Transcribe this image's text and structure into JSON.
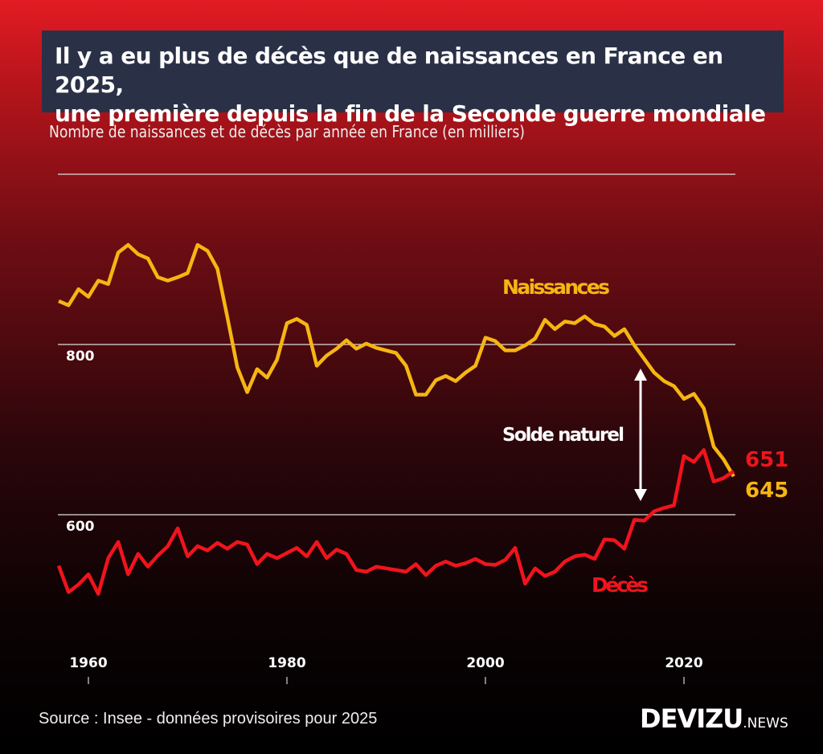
{
  "title": {
    "line1": "Il y a eu plus de décès que de naissances en France en 2025,",
    "line2": "une première depuis la fin de la Seconde guerre mondiale"
  },
  "subtitle": "Nombre de naissances et de décès par année en France (en milliers)",
  "source": "Source : Insee - données provisoires pour 2025",
  "logo": {
    "main": "DEVIZU",
    "suffix": ".NEWS"
  },
  "colors": {
    "births": "#f6b612",
    "deaths": "#f0141c",
    "title_bg": "#2a3147"
  },
  "chart_data": {
    "type": "line",
    "title": "Nombre de naissances et de décès par année en France (en milliers)",
    "x": [
      1957,
      1958,
      1959,
      1960,
      1961,
      1962,
      1963,
      1964,
      1965,
      1966,
      1967,
      1968,
      1969,
      1970,
      1971,
      1972,
      1973,
      1974,
      1975,
      1976,
      1977,
      1978,
      1979,
      1980,
      1981,
      1982,
      1983,
      1984,
      1985,
      1986,
      1987,
      1988,
      1989,
      1990,
      1991,
      1992,
      1993,
      1994,
      1995,
      1996,
      1997,
      1998,
      1999,
      2000,
      2001,
      2002,
      2003,
      2004,
      2005,
      2006,
      2007,
      2008,
      2009,
      2010,
      2011,
      2012,
      2013,
      2014,
      2015,
      2016,
      2017,
      2018,
      2019,
      2020,
      2021,
      2022,
      2023,
      2024,
      2025
    ],
    "series": [
      {
        "name": "Naissances",
        "color": "#f6b612",
        "values": [
          851,
          846,
          865,
          856,
          875,
          871,
          908,
          917,
          906,
          901,
          879,
          875,
          879,
          884,
          917,
          910,
          889,
          832,
          773,
          744,
          771,
          761,
          782,
          825,
          830,
          823,
          775,
          787,
          795,
          805,
          795,
          801,
          796,
          793,
          790,
          775,
          741,
          741,
          758,
          763,
          757,
          767,
          775,
          808,
          804,
          793,
          793,
          799,
          807,
          829,
          818,
          827,
          825,
          833,
          824,
          821,
          810,
          818,
          799,
          783,
          767,
          757,
          751,
          736,
          742,
          725,
          680,
          665,
          645
        ]
      },
      {
        "name": "Décès",
        "color": "#f0141c",
        "values": [
          540,
          509,
          518,
          530,
          507,
          549,
          568,
          530,
          554,
          539,
          552,
          563,
          584,
          551,
          563,
          558,
          567,
          560,
          568,
          565,
          542,
          554,
          549,
          555,
          561,
          551,
          568,
          549,
          559,
          554,
          535,
          533,
          539,
          537,
          535,
          533,
          542,
          529,
          540,
          545,
          540,
          543,
          548,
          542,
          541,
          547,
          561,
          519,
          537,
          528,
          533,
          545,
          551,
          553,
          548,
          571,
          570,
          560,
          594,
          593,
          604,
          608,
          611,
          669,
          662,
          676,
          639,
          643,
          651
        ]
      }
    ],
    "x_ticks": [
      "1960",
      "1980",
      "2000",
      "2020"
    ],
    "y_ticks": [
      "800",
      "600"
    ],
    "ylim": [
      490,
      1000
    ],
    "grid": true,
    "annotations": {
      "arrow_label": "Solde naturel",
      "births_end": "645",
      "deaths_end": "651"
    },
    "legend": "inline-labels"
  }
}
